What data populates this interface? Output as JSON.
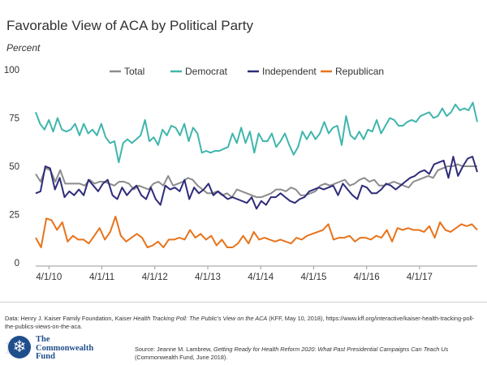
{
  "page": {
    "title": "Favorable View of ACA by Political Party",
    "subtitle": "Percent",
    "data_note_prefix": "Data: Henry J. Kaiser Family Foundation, ",
    "data_note_title": "Kaiser Health Tracking Poll: The Public's View on the ACA",
    "data_note_suffix": " (KFF, May 10, 2018), https://www.kff.org/interactive/kaiser-health-tracking-poll-the-publics-views-on-the-aca.",
    "source_prefix": "Source: Jeanne M. Lambrew, ",
    "source_title": "Getting Ready for Health Reform 2020: What Past Presidential Campaigns Can Teach Us",
    "source_suffix": " (Commonwealth Fund, June 2018).",
    "logo_line1": "The",
    "logo_line2": "Commonwealth",
    "logo_line3": "Fund",
    "logo_ghost": "100"
  },
  "chart_data": {
    "type": "line",
    "title": "Favorable View of ACA by Political Party",
    "ylabel": "Percent",
    "ylim": [
      0,
      100
    ],
    "yticks": [
      0,
      25,
      50,
      75,
      100
    ],
    "x_range": [
      2010.0,
      2018.34
    ],
    "xticks": [
      {
        "label": "4/1/10",
        "year": 2010.25
      },
      {
        "label": "4/1/11",
        "year": 2011.25
      },
      {
        "label": "4/1/12",
        "year": 2012.25
      },
      {
        "label": "4/1/13",
        "year": 2013.25
      },
      {
        "label": "4/1/14",
        "year": 2014.25
      },
      {
        "label": "4/1/15",
        "year": 2015.25
      },
      {
        "label": "4/1/16",
        "year": 2016.25
      },
      {
        "label": "4/1/17",
        "year": 2017.25
      }
    ],
    "legend_position": "top",
    "grid": false,
    "series": [
      {
        "name": "Total",
        "color": "#8c8c8c",
        "values": [
          46,
          42,
          49,
          48,
          42,
          48,
          41,
          41,
          41,
          41,
          40,
          43,
          41,
          42,
          42,
          41,
          40,
          42,
          42,
          41,
          38,
          40,
          39,
          38,
          41,
          42,
          40,
          45,
          40,
          41,
          42,
          44,
          43,
          40,
          38,
          36,
          36,
          37,
          35,
          36,
          34,
          38,
          37,
          36,
          35,
          34,
          34,
          35,
          36,
          38,
          38,
          37,
          39,
          38,
          35,
          35,
          36,
          37,
          40,
          41,
          40,
          41,
          42,
          43,
          40,
          41,
          43,
          44,
          42,
          43,
          40,
          40,
          41,
          42,
          41,
          40,
          39,
          42,
          43,
          44,
          45,
          44,
          48,
          49,
          50,
          50,
          51,
          50,
          50,
          50,
          50
        ]
      },
      {
        "name": "Democrat",
        "color": "#3fb6ad",
        "values": [
          78,
          72,
          69,
          74,
          68,
          75,
          69,
          68,
          69,
          72,
          66,
          72,
          67,
          69,
          66,
          72,
          65,
          62,
          63,
          52,
          62,
          64,
          62,
          64,
          66,
          74,
          63,
          65,
          61,
          69,
          66,
          71,
          70,
          66,
          72,
          63,
          70,
          67,
          57,
          58,
          57,
          58,
          58,
          59,
          60,
          67,
          62,
          70,
          62,
          68,
          57,
          67,
          63,
          63,
          67,
          60,
          63,
          67,
          61,
          56,
          60,
          68,
          64,
          68,
          64,
          67,
          73,
          67,
          70,
          71,
          61,
          76,
          66,
          64,
          68,
          64,
          69,
          68,
          74,
          67,
          71,
          75,
          74,
          71,
          71,
          73,
          74,
          73,
          76,
          77,
          78,
          75,
          76,
          80,
          76,
          78,
          82,
          79,
          80,
          79,
          83,
          73
        ]
      },
      {
        "name": "Independent",
        "color": "#2e2c7a",
        "values": [
          36,
          37,
          50,
          49,
          38,
          44,
          34,
          37,
          35,
          38,
          35,
          43,
          40,
          37,
          41,
          43,
          35,
          33,
          39,
          35,
          38,
          40,
          35,
          33,
          39,
          33,
          30,
          40,
          38,
          39,
          37,
          43,
          33,
          39,
          36,
          38,
          41,
          35,
          37,
          35,
          33,
          34,
          33,
          32,
          31,
          34,
          28,
          32,
          30,
          34,
          34,
          36,
          34,
          32,
          31,
          33,
          34,
          37,
          38,
          39,
          38,
          39,
          40,
          35,
          41,
          38,
          35,
          33,
          40,
          39,
          36,
          36,
          38,
          41,
          40,
          38,
          40,
          42,
          44,
          45,
          47,
          48,
          46,
          51,
          52,
          53,
          44,
          55,
          45,
          50,
          54,
          55,
          47
        ]
      },
      {
        "name": "Republican",
        "color": "#e8731a",
        "values": [
          13,
          8,
          23,
          22,
          17,
          21,
          11,
          14,
          12,
          12,
          10,
          14,
          18,
          12,
          16,
          24,
          14,
          11,
          13,
          15,
          13,
          8,
          9,
          11,
          8,
          12,
          12,
          13,
          12,
          17,
          13,
          15,
          12,
          14,
          9,
          12,
          8,
          8,
          10,
          14,
          10,
          16,
          12,
          13,
          12,
          11,
          12,
          11,
          10,
          13,
          12,
          14,
          15,
          16,
          17,
          20,
          12,
          13,
          13,
          14,
          11,
          13,
          13,
          12,
          14,
          13,
          17,
          11,
          18,
          17,
          18,
          17,
          17,
          16,
          19,
          13,
          21,
          17,
          16,
          18,
          20,
          19,
          20,
          17
        ]
      }
    ]
  }
}
